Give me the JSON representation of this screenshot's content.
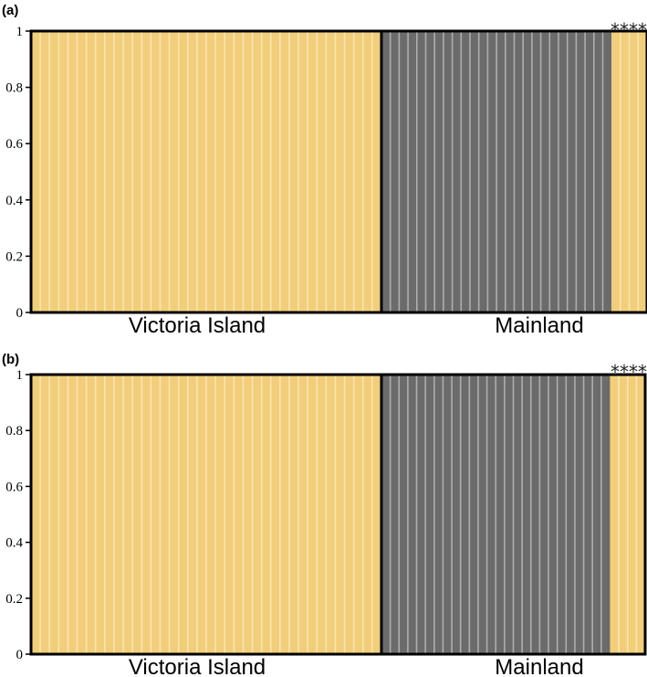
{
  "colors": {
    "cluster_1": "#F2CE7A",
    "cluster_2": "#6B6B6B",
    "separator_on_cluster_1": "#F8E4B3",
    "separator_on_cluster_2": "#AEAEAE",
    "frame": "#000000"
  },
  "chart_data": [
    {
      "type": "bar",
      "stacked": true,
      "panel_label": "(a)",
      "ylim": [
        0,
        1
      ],
      "yticks": [
        "0",
        "0.2",
        "0.4",
        "0.6",
        "0.8",
        "1"
      ],
      "groups": [
        {
          "label": "Victoria Island",
          "n": 38,
          "cluster_1_proportion": 1.0,
          "cluster_2_proportion": 0.0
        },
        {
          "label": "Mainland",
          "n": 30,
          "cluster_1_proportion_by_individual": "0 for first 26, 1 for last 4",
          "cluster_1_proportion": 0.13,
          "cluster_2_proportion": 0.87
        }
      ],
      "annotation": "****",
      "annotation_note": "last 4 mainland individuals assigned to cluster 1"
    },
    {
      "type": "bar",
      "stacked": true,
      "panel_label": "(b)",
      "ylim": [
        0,
        1
      ],
      "yticks": [
        "0",
        "0.2",
        "0.4",
        "0.6",
        "0.8",
        "1"
      ],
      "groups": [
        {
          "label": "Victoria Island",
          "n": 38,
          "cluster_1_proportion": 1.0,
          "cluster_2_proportion": 0.0
        },
        {
          "label": "Mainland",
          "n": 30,
          "cluster_1_proportion_by_individual": "0 for first 26, 1 for last 4",
          "cluster_1_proportion": 0.13,
          "cluster_2_proportion": 0.87
        }
      ],
      "annotation": "****"
    }
  ]
}
